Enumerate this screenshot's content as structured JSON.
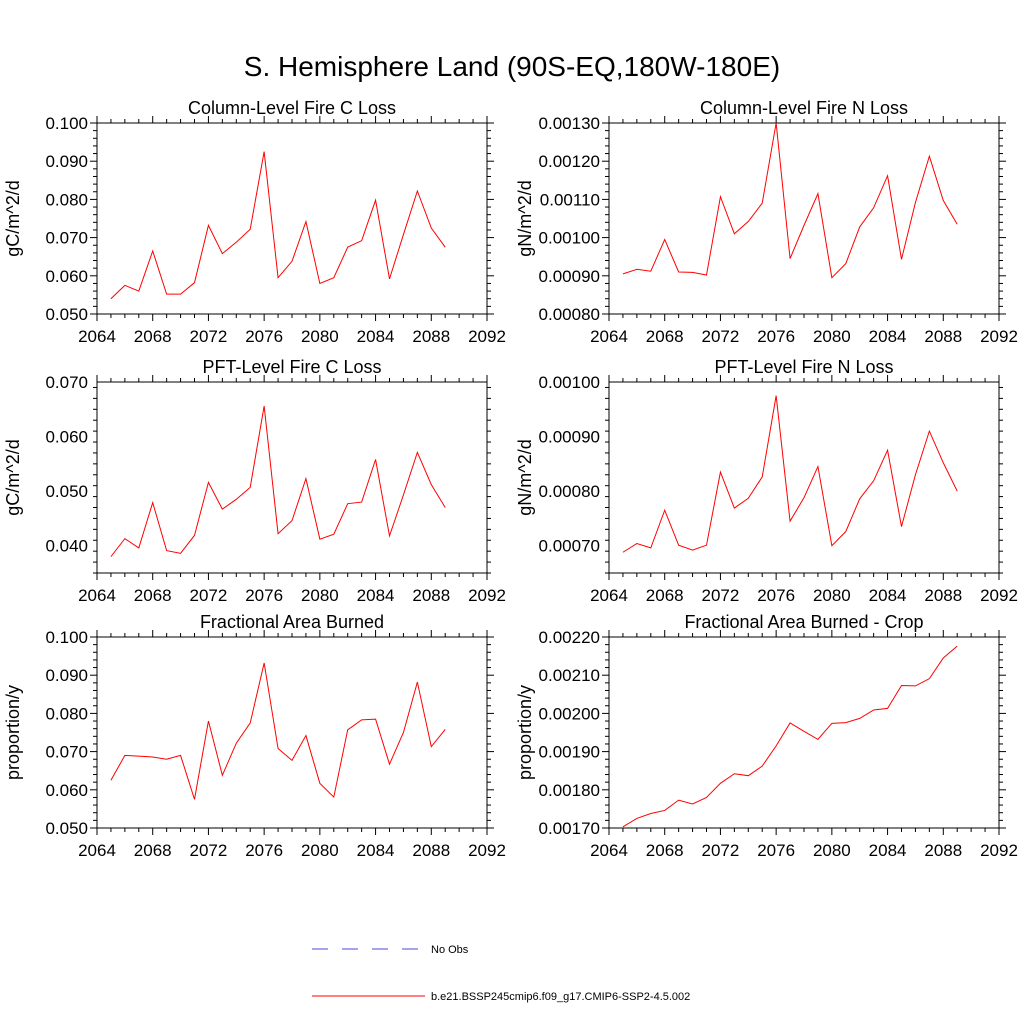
{
  "title": "S. Hemisphere Land (90S-EQ,180W-180E)",
  "colors": {
    "series": "#ff0000",
    "obs": "#4a4ad8",
    "axis": "#000000"
  },
  "legend": [
    {
      "label": "No Obs",
      "color": "#4a4ad8",
      "dash": "dashed"
    },
    {
      "label": "b.e21.BSSP245cmip6.f09_g17.CMIP6-SSP2-4.5.002",
      "color": "#ff0000",
      "dash": "solid"
    }
  ],
  "chart_data": [
    {
      "type": "line",
      "title": "Column-Level Fire C Loss",
      "xlabel": "",
      "ylabel": "gC/m^2/d",
      "xlim": [
        2064,
        2092
      ],
      "ylim": [
        0.05,
        0.1
      ],
      "xticks": [
        "2064",
        "2068",
        "2072",
        "2076",
        "2080",
        "2084",
        "2088",
        "2092"
      ],
      "yticks": [
        "0.050",
        "0.060",
        "0.070",
        "0.080",
        "0.090",
        "0.100"
      ],
      "x": [
        2065,
        2066,
        2067,
        2068,
        2069,
        2070,
        2071,
        2072,
        2073,
        2074,
        2075,
        2076,
        2077,
        2078,
        2079,
        2080,
        2081,
        2082,
        2083,
        2084,
        2085,
        2086,
        2087,
        2088,
        2089
      ],
      "series": [
        {
          "values": [
            0.054,
            0.0575,
            0.056,
            0.0665,
            0.0552,
            0.0552,
            0.0582,
            0.0732,
            0.0658,
            0.0688,
            0.0722,
            0.0925,
            0.0595,
            0.0638,
            0.0742,
            0.058,
            0.0595,
            0.0675,
            0.0692,
            0.0798,
            0.0592,
            0.0708,
            0.0822,
            0.0725,
            0.0675
          ]
        }
      ]
    },
    {
      "type": "line",
      "title": "Column-Level Fire N Loss",
      "xlabel": "",
      "ylabel": "gN/m^2/d",
      "xlim": [
        2064,
        2092
      ],
      "ylim": [
        0.0008,
        0.0013
      ],
      "xticks": [
        "2064",
        "2068",
        "2072",
        "2076",
        "2080",
        "2084",
        "2088",
        "2092"
      ],
      "yticks": [
        "0.00080",
        "0.00090",
        "0.00100",
        "0.00110",
        "0.00120",
        "0.00130"
      ],
      "x": [
        2065,
        2066,
        2067,
        2068,
        2069,
        2070,
        2071,
        2072,
        2073,
        2074,
        2075,
        2076,
        2077,
        2078,
        2079,
        2080,
        2081,
        2082,
        2083,
        2084,
        2085,
        2086,
        2087,
        2088,
        2089
      ],
      "series": [
        {
          "values": [
            0.000905,
            0.000917,
            0.000912,
            0.000995,
            0.00091,
            0.000909,
            0.000902,
            0.001107,
            0.00101,
            0.001042,
            0.00109,
            0.0013,
            0.000945,
            0.001032,
            0.001115,
            0.000895,
            0.000932,
            0.001028,
            0.001078,
            0.001162,
            0.000943,
            0.001092,
            0.001213,
            0.001097,
            0.001035
          ]
        }
      ]
    },
    {
      "type": "line",
      "title": "PFT-Level Fire C Loss",
      "xlabel": "",
      "ylabel": "gC/m^2/d",
      "xlim": [
        2064,
        2092
      ],
      "ylim": [
        0.035,
        0.07
      ],
      "xticks": [
        "2064",
        "2068",
        "2072",
        "2076",
        "2080",
        "2084",
        "2088",
        "2092"
      ],
      "yticks": [
        "0.040",
        "0.050",
        "0.060",
        "0.070"
      ],
      "x": [
        2065,
        2066,
        2067,
        2068,
        2069,
        2070,
        2071,
        2072,
        2073,
        2074,
        2075,
        2076,
        2077,
        2078,
        2079,
        2080,
        2081,
        2082,
        2083,
        2084,
        2085,
        2086,
        2087,
        2088,
        2089
      ],
      "series": [
        {
          "values": [
            0.038,
            0.0413,
            0.0396,
            0.0479,
            0.0391,
            0.0386,
            0.0419,
            0.0516,
            0.0467,
            0.0485,
            0.0507,
            0.0656,
            0.0422,
            0.0446,
            0.0523,
            0.0412,
            0.0421,
            0.0477,
            0.048,
            0.0558,
            0.0418,
            0.0493,
            0.0571,
            0.0512,
            0.047
          ]
        }
      ]
    },
    {
      "type": "line",
      "title": "PFT-Level Fire N Loss",
      "xlabel": "",
      "ylabel": "gN/m^2/d",
      "xlim": [
        2064,
        2092
      ],
      "ylim": [
        0.00065,
        0.001
      ],
      "xticks": [
        "2064",
        "2068",
        "2072",
        "2076",
        "2080",
        "2084",
        "2088",
        "2092"
      ],
      "yticks": [
        "0.00070",
        "0.00080",
        "0.00090",
        "0.00100"
      ],
      "x": [
        2065,
        2066,
        2067,
        2068,
        2069,
        2070,
        2071,
        2072,
        2073,
        2074,
        2075,
        2076,
        2077,
        2078,
        2079,
        2080,
        2081,
        2082,
        2083,
        2084,
        2085,
        2086,
        2087,
        2088,
        2089
      ],
      "series": [
        {
          "values": [
            0.000688,
            0.000704,
            0.000696,
            0.000765,
            0.000701,
            0.000692,
            0.000701,
            0.000835,
            0.000769,
            0.000787,
            0.000826,
            0.000975,
            0.000745,
            0.000788,
            0.000845,
            0.0007,
            0.000726,
            0.000786,
            0.000819,
            0.000875,
            0.000735,
            0.00083,
            0.00091,
            0.000852,
            0.0008
          ]
        }
      ]
    },
    {
      "type": "line",
      "title": "Fractional Area Burned",
      "xlabel": "",
      "ylabel": "proportion/y",
      "xlim": [
        2064,
        2092
      ],
      "ylim": [
        0.05,
        0.1
      ],
      "xticks": [
        "2064",
        "2068",
        "2072",
        "2076",
        "2080",
        "2084",
        "2088",
        "2092"
      ],
      "yticks": [
        "0.050",
        "0.060",
        "0.070",
        "0.080",
        "0.090",
        "0.100"
      ],
      "x": [
        2065,
        2066,
        2067,
        2068,
        2069,
        2070,
        2071,
        2072,
        2073,
        2074,
        2075,
        2076,
        2077,
        2078,
        2079,
        2080,
        2081,
        2082,
        2083,
        2084,
        2085,
        2086,
        2087,
        2088,
        2089
      ],
      "series": [
        {
          "values": [
            0.0625,
            0.069,
            0.0688,
            0.0686,
            0.068,
            0.069,
            0.0575,
            0.078,
            0.0638,
            0.0722,
            0.0775,
            0.0932,
            0.0708,
            0.0677,
            0.0742,
            0.0617,
            0.0581,
            0.0757,
            0.0783,
            0.0785,
            0.0667,
            0.075,
            0.0882,
            0.0713,
            0.0758
          ]
        }
      ]
    },
    {
      "type": "line",
      "title": "Fractional Area Burned - Crop",
      "xlabel": "",
      "ylabel": "proportion/y",
      "xlim": [
        2064,
        2092
      ],
      "ylim": [
        0.0017,
        0.0022
      ],
      "xticks": [
        "2064",
        "2068",
        "2072",
        "2076",
        "2080",
        "2084",
        "2088",
        "2092"
      ],
      "yticks": [
        "0.00170",
        "0.00180",
        "0.00190",
        "0.00200",
        "0.00210",
        "0.00220"
      ],
      "x": [
        2065,
        2066,
        2067,
        2068,
        2069,
        2070,
        2071,
        2072,
        2073,
        2074,
        2075,
        2076,
        2077,
        2078,
        2079,
        2080,
        2081,
        2082,
        2083,
        2084,
        2085,
        2086,
        2087,
        2088,
        2089
      ],
      "series": [
        {
          "values": [
            0.001703,
            0.001725,
            0.001738,
            0.001746,
            0.001773,
            0.001763,
            0.00178,
            0.001817,
            0.001842,
            0.001837,
            0.001862,
            0.001915,
            0.001975,
            0.001953,
            0.001932,
            0.001974,
            0.001976,
            0.001987,
            0.002009,
            0.002013,
            0.002073,
            0.002072,
            0.002091,
            0.002145,
            0.002176
          ]
        }
      ]
    }
  ]
}
